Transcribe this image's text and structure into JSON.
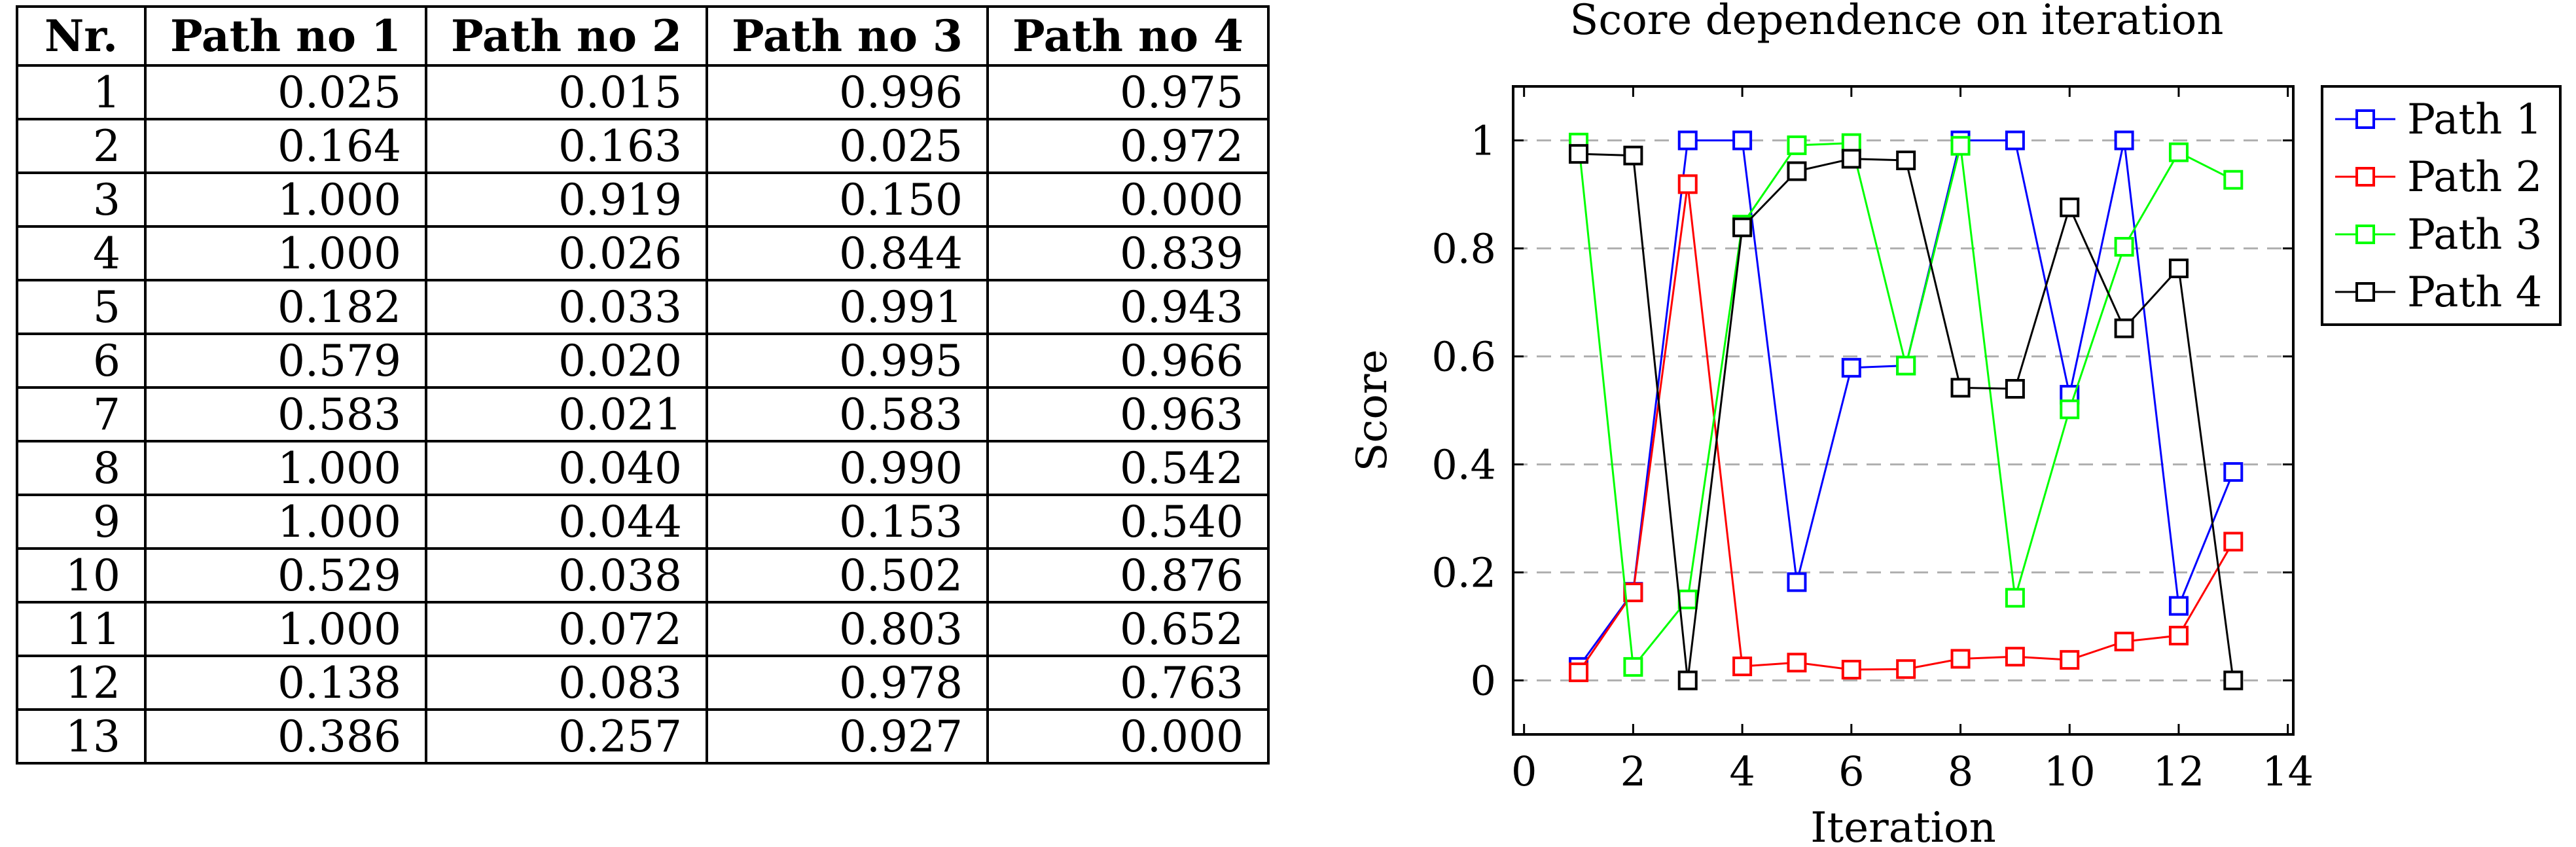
{
  "table": {
    "headers": [
      "Nr.",
      "Path no 1",
      "Path no 2",
      "Path no 3",
      "Path no 4"
    ],
    "rows": [
      [
        "1",
        "0.025",
        "0.015",
        "0.996",
        "0.975"
      ],
      [
        "2",
        "0.164",
        "0.163",
        "0.025",
        "0.972"
      ],
      [
        "3",
        "1.000",
        "0.919",
        "0.150",
        "0.000"
      ],
      [
        "4",
        "1.000",
        "0.026",
        "0.844",
        "0.839"
      ],
      [
        "5",
        "0.182",
        "0.033",
        "0.991",
        "0.943"
      ],
      [
        "6",
        "0.579",
        "0.020",
        "0.995",
        "0.966"
      ],
      [
        "7",
        "0.583",
        "0.021",
        "0.583",
        "0.963"
      ],
      [
        "8",
        "1.000",
        "0.040",
        "0.990",
        "0.542"
      ],
      [
        "9",
        "1.000",
        "0.044",
        "0.153",
        "0.540"
      ],
      [
        "10",
        "0.529",
        "0.038",
        "0.502",
        "0.876"
      ],
      [
        "11",
        "1.000",
        "0.072",
        "0.803",
        "0.652"
      ],
      [
        "12",
        "0.138",
        "0.083",
        "0.978",
        "0.763"
      ],
      [
        "13",
        "0.386",
        "0.257",
        "0.927",
        "0.000"
      ]
    ]
  },
  "chart_data": {
    "type": "line",
    "title": "Score dependence on iteration",
    "xlabel": "Iteration",
    "ylabel": "Score",
    "xlim": [
      -0.2,
      14.1
    ],
    "ylim": [
      -0.1,
      1.1
    ],
    "xticks": [
      0,
      2,
      4,
      6,
      8,
      10,
      12,
      14
    ],
    "yticks": [
      0,
      0.2,
      0.4,
      0.6,
      0.8,
      1
    ],
    "ytick_labels": [
      "0",
      "0.2",
      "0.4",
      "0.6",
      "0.8",
      "1"
    ],
    "grid": "horizontal dashed",
    "legend_position": "outside-right-top",
    "marker": "square",
    "x": [
      1,
      2,
      3,
      4,
      5,
      6,
      7,
      8,
      9,
      10,
      11,
      12,
      13
    ],
    "series": [
      {
        "name": "Path 1",
        "color": "#0000ff",
        "values": [
          0.025,
          0.164,
          1.0,
          1.0,
          0.182,
          0.579,
          0.583,
          1.0,
          1.0,
          0.529,
          1.0,
          0.138,
          0.386
        ]
      },
      {
        "name": "Path 2",
        "color": "#ff0000",
        "values": [
          0.015,
          0.163,
          0.919,
          0.026,
          0.033,
          0.02,
          0.021,
          0.04,
          0.044,
          0.038,
          0.072,
          0.083,
          0.257
        ]
      },
      {
        "name": "Path 3",
        "color": "#00ff00",
        "values": [
          0.996,
          0.025,
          0.15,
          0.844,
          0.991,
          0.995,
          0.583,
          0.99,
          0.153,
          0.502,
          0.803,
          0.978,
          0.927
        ]
      },
      {
        "name": "Path 4",
        "color": "#000000",
        "values": [
          0.975,
          0.972,
          0.0,
          0.839,
          0.943,
          0.966,
          0.963,
          0.542,
          0.54,
          0.876,
          0.652,
          0.763,
          0.0
        ]
      }
    ]
  }
}
